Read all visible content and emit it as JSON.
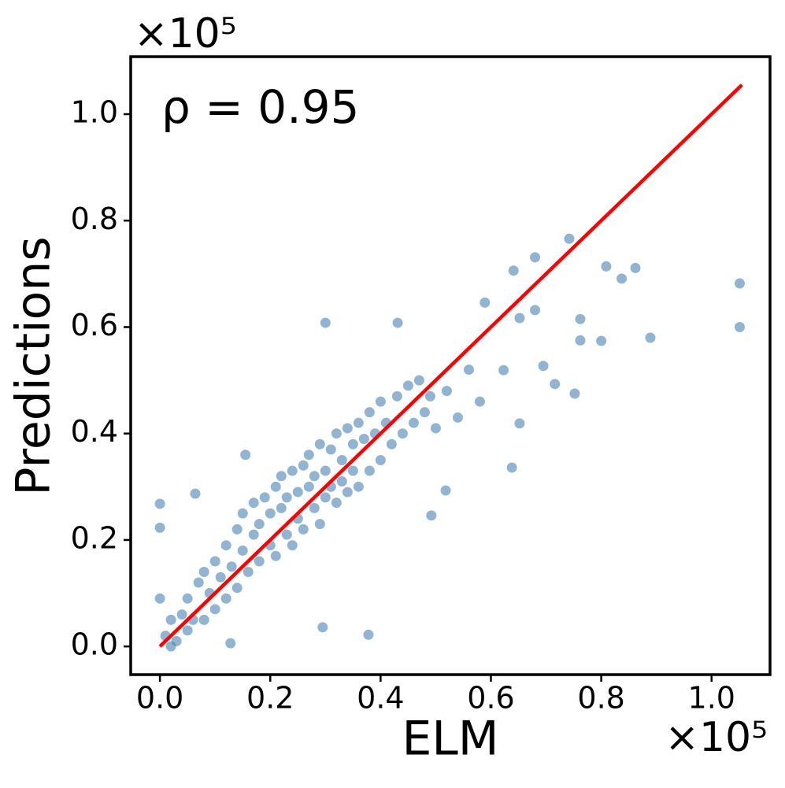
{
  "chart_data": {
    "type": "scatter",
    "xlabel": "ELM",
    "ylabel": "Predictions",
    "x_offset_text": "×10⁵",
    "y_offset_text": "×10⁵",
    "annotation": "ρ = 0.95",
    "xlim": [
      -0.053,
      1.106
    ],
    "ylim": [
      -0.053,
      1.108
    ],
    "xticks": [
      {
        "value": 0,
        "label": "0.0"
      },
      {
        "value": 0.2,
        "label": "0.2"
      },
      {
        "value": 0.4,
        "label": "0.4"
      },
      {
        "value": 0.6,
        "label": "0.6"
      },
      {
        "value": 0.8,
        "label": "0.8"
      },
      {
        "value": 1.0,
        "label": "1.0"
      }
    ],
    "yticks": [
      {
        "value": 0,
        "label": "0.0"
      },
      {
        "value": 0.2,
        "label": "0.2"
      },
      {
        "value": 0.4,
        "label": "0.4"
      },
      {
        "value": 0.6,
        "label": "0.6"
      },
      {
        "value": 0.8,
        "label": "0.8"
      },
      {
        "value": 1.0,
        "label": "1.0"
      }
    ],
    "color": "#4682b4",
    "x": [
      0.01,
      0.02,
      0.02,
      0.03,
      0.04,
      0.05,
      0.05,
      0.06,
      0.07,
      0.08,
      0.08,
      0.09,
      0.1,
      0.1,
      0.11,
      0.12,
      0.12,
      0.13,
      0.14,
      0.14,
      0.15,
      0.15,
      0.16,
      0.17,
      0.17,
      0.18,
      0.18,
      0.19,
      0.2,
      0.2,
      0.21,
      0.21,
      0.22,
      0.22,
      0.23,
      0.23,
      0.24,
      0.24,
      0.25,
      0.25,
      0.26,
      0.26,
      0.27,
      0.27,
      0.28,
      0.28,
      0.29,
      0.29,
      0.3,
      0.3,
      0.31,
      0.31,
      0.32,
      0.32,
      0.33,
      0.33,
      0.34,
      0.34,
      0.35,
      0.35,
      0.36,
      0.36,
      0.37,
      0.38,
      0.38,
      0.39,
      0.4,
      0.4,
      0.41,
      0.42,
      0.43,
      0.44,
      0.45,
      0.46,
      0.47,
      0.48,
      0.49,
      0.5,
      0.52,
      0.54,
      0.56,
      0.58,
      1.051,
      1.051,
      0.809,
      0.837,
      0.862,
      0.889,
      0.8,
      0.762,
      0.762,
      0.742,
      0.68,
      0.641,
      0.589,
      0.652,
      0.68,
      0.3,
      0.431,
      0.378,
      0.295,
      0,
      0,
      0,
      0.752,
      0.716,
      0.638,
      0.492,
      0.518,
      0.652,
      0.623,
      0.695,
      0.064,
      0.155,
      0.128
    ],
    "y": [
      0.02,
      0.0,
      0.05,
      0.01,
      0.06,
      0.03,
      0.09,
      0.05,
      0.12,
      0.05,
      0.14,
      0.1,
      0.16,
      0.07,
      0.13,
      0.19,
      0.09,
      0.15,
      0.22,
      0.11,
      0.18,
      0.25,
      0.14,
      0.21,
      0.27,
      0.16,
      0.23,
      0.28,
      0.19,
      0.25,
      0.3,
      0.17,
      0.26,
      0.32,
      0.21,
      0.28,
      0.33,
      0.19,
      0.29,
      0.24,
      0.34,
      0.22,
      0.3,
      0.36,
      0.26,
      0.32,
      0.38,
      0.23,
      0.33,
      0.28,
      0.37,
      0.3,
      0.4,
      0.27,
      0.35,
      0.31,
      0.41,
      0.29,
      0.38,
      0.33,
      0.42,
      0.3,
      0.39,
      0.44,
      0.33,
      0.4,
      0.46,
      0.35,
      0.42,
      0.38,
      0.47,
      0.4,
      0.49,
      0.42,
      0.5,
      0.44,
      0.47,
      0.41,
      0.48,
      0.43,
      0.52,
      0.46,
      0.682,
      0.6,
      0.714,
      0.691,
      0.711,
      0.58,
      0.574,
      0.575,
      0.615,
      0.766,
      0.731,
      0.706,
      0.646,
      0.617,
      0.632,
      0.608,
      0.608,
      0.022,
      0.036,
      0.268,
      0.223,
      0.09,
      0.475,
      0.493,
      0.336,
      0.246,
      0.293,
      0.419,
      0.519,
      0.527,
      0.287,
      0.36,
      0.006
    ],
    "line": {
      "color": "#ff0000",
      "x": [
        0,
        1.055
      ],
      "y": [
        0,
        1.055
      ]
    }
  }
}
